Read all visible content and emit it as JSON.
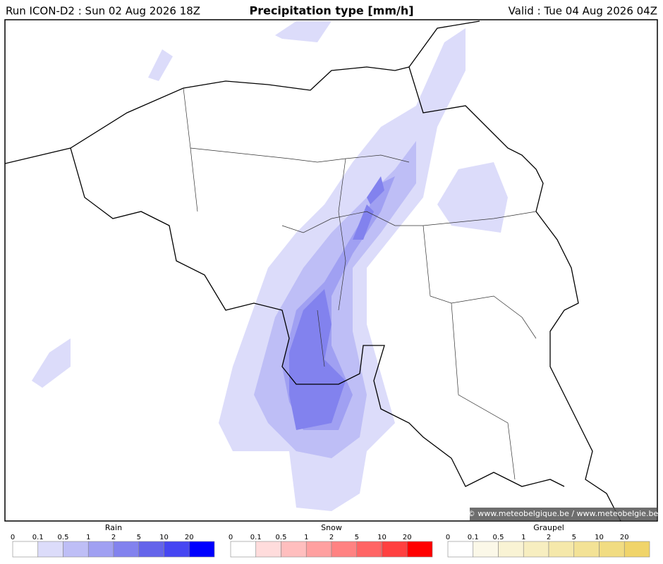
{
  "header": {
    "run": "Run ICON-D2 : Sun 02 Aug 2026 18Z",
    "title": "Precipitation type [mm/h]",
    "valid": "Valid : Tue 04 Aug 2026 04Z"
  },
  "credit": "© www.meteobelgique.be / www.meteobelgie.be",
  "legends": [
    {
      "title": "Rain",
      "labels": [
        "0",
        "0.1",
        "0.5",
        "1",
        "2",
        "5",
        "10",
        "20"
      ],
      "colors": [
        "#ffffff",
        "#dcdcfa",
        "#bebef6",
        "#a0a0f2",
        "#8282ee",
        "#6464ea",
        "#4646f2",
        "#0000ff"
      ]
    },
    {
      "title": "Snow",
      "labels": [
        "0",
        "0.1",
        "0.5",
        "1",
        "2",
        "5",
        "10",
        "20"
      ],
      "colors": [
        "#ffffff",
        "#ffdcdc",
        "#ffbebe",
        "#ffa0a0",
        "#ff8282",
        "#ff6464",
        "#ff4040",
        "#ff0000"
      ]
    },
    {
      "title": "Graupel",
      "labels": [
        "0",
        "0.1",
        "0.5",
        "1",
        "2",
        "5",
        "10",
        "20"
      ],
      "colors": [
        "#ffffff",
        "#fbf8e8",
        "#f9f3d4",
        "#f7eec0",
        "#f5e8aa",
        "#f3e296",
        "#f1dc82",
        "#f0d46a"
      ]
    }
  ]
}
